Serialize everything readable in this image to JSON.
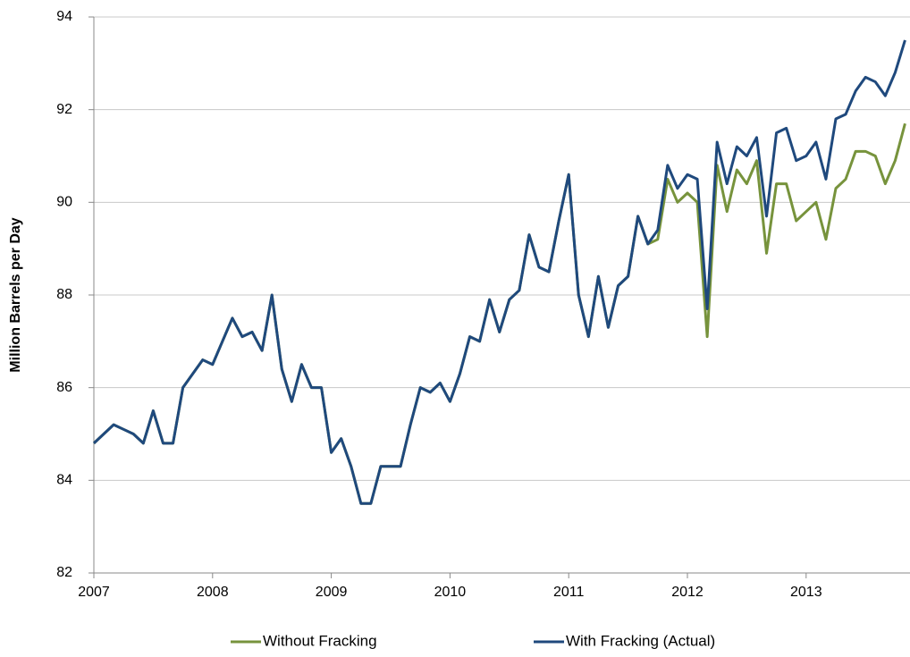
{
  "chart_data": {
    "type": "line",
    "y_label": "Million Barrels per Day",
    "x": [
      2007,
      2007.0833,
      2007.1667,
      2007.25,
      2007.3333,
      2007.4167,
      2007.5,
      2007.5833,
      2007.6667,
      2007.75,
      2007.8333,
      2007.9167,
      2008,
      2008.0833,
      2008.1667,
      2008.25,
      2008.3333,
      2008.4167,
      2008.5,
      2008.5833,
      2008.6667,
      2008.75,
      2008.8333,
      2008.9167,
      2009,
      2009.0833,
      2009.1667,
      2009.25,
      2009.3333,
      2009.4167,
      2009.5,
      2009.5833,
      2009.6667,
      2009.75,
      2009.8333,
      2009.9167,
      2010,
      2010.0833,
      2010.1667,
      2010.25,
      2010.3333,
      2010.4167,
      2010.5,
      2010.5833,
      2010.6667,
      2010.75,
      2010.8333,
      2010.9167,
      2011,
      2011.0833,
      2011.1667,
      2011.25,
      2011.3333,
      2011.4167,
      2011.5,
      2011.5833,
      2011.6667,
      2011.75,
      2011.8333,
      2011.9167,
      2012,
      2012.0833,
      2012.1667,
      2012.25,
      2012.3333,
      2012.4167,
      2012.5,
      2012.5833,
      2012.6667,
      2012.75,
      2012.8333,
      2012.9167,
      2013,
      2013.0833,
      2013.1667,
      2013.25,
      2013.3333,
      2013.4167,
      2013.5,
      2013.5833,
      2013.6667,
      2013.75,
      2013.8333
    ],
    "series": [
      {
        "name": "Without Fracking",
        "color": "#77933c",
        "values": [
          84.8,
          85.0,
          85.2,
          85.1,
          85.0,
          84.8,
          85.5,
          84.8,
          84.8,
          86.0,
          86.3,
          86.6,
          86.5,
          87.0,
          87.5,
          87.1,
          87.2,
          86.8,
          88.0,
          86.4,
          85.7,
          86.5,
          86.0,
          86.0,
          84.6,
          84.9,
          84.3,
          83.5,
          83.5,
          84.3,
          84.3,
          84.3,
          85.2,
          86.0,
          85.9,
          86.1,
          85.7,
          86.3,
          87.1,
          87.0,
          87.9,
          87.2,
          87.9,
          88.1,
          89.3,
          88.6,
          88.5,
          89.6,
          90.6,
          88.0,
          87.1,
          88.4,
          87.3,
          88.2,
          88.4,
          89.7,
          89.1,
          89.2,
          90.5,
          90.0,
          90.2,
          90.0,
          87.1,
          90.8,
          89.8,
          90.7,
          90.4,
          90.9,
          88.9,
          90.4,
          90.4,
          89.6,
          89.8,
          90.0,
          89.2,
          90.3,
          90.5,
          91.1,
          91.1,
          91.0,
          90.4,
          90.9,
          91.7
        ]
      },
      {
        "name": "With Fracking (Actual)",
        "color": "#1f497d",
        "values": [
          84.8,
          85.0,
          85.2,
          85.1,
          85.0,
          84.8,
          85.5,
          84.8,
          84.8,
          86.0,
          86.3,
          86.6,
          86.5,
          87.0,
          87.5,
          87.1,
          87.2,
          86.8,
          88.0,
          86.4,
          85.7,
          86.5,
          86.0,
          86.0,
          84.6,
          84.9,
          84.3,
          83.5,
          83.5,
          84.3,
          84.3,
          84.3,
          85.2,
          86.0,
          85.9,
          86.1,
          85.7,
          86.3,
          87.1,
          87.0,
          87.9,
          87.2,
          87.9,
          88.1,
          89.3,
          88.6,
          88.5,
          89.6,
          90.6,
          88.0,
          87.1,
          88.4,
          87.3,
          88.2,
          88.4,
          89.7,
          89.1,
          89.4,
          90.8,
          90.3,
          90.6,
          90.5,
          87.7,
          91.3,
          90.4,
          91.2,
          91.0,
          91.4,
          89.7,
          91.5,
          91.6,
          90.9,
          91.0,
          91.3,
          90.5,
          91.8,
          91.9,
          92.4,
          92.7,
          92.6,
          92.3,
          92.8,
          93.5
        ]
      }
    ],
    "xlim": [
      2007,
      2013.875
    ],
    "xticks": [
      2007,
      2008,
      2009,
      2010,
      2011,
      2012,
      2013
    ],
    "ylim": [
      82,
      94
    ],
    "yticks": [
      82,
      84,
      86,
      88,
      90,
      92,
      94
    ],
    "grid": true,
    "legend": "bottom"
  }
}
